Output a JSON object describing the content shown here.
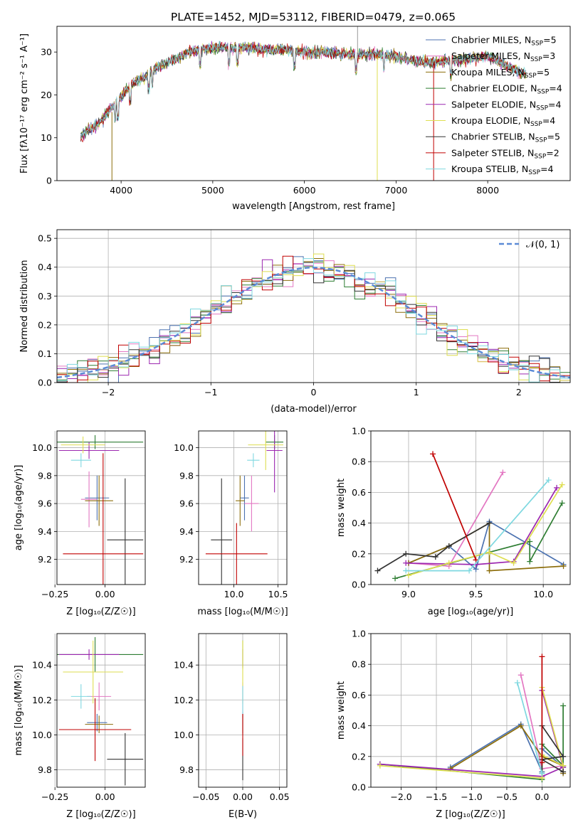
{
  "figure": {
    "title": "PLATE=1452, MJD=53112, FIBERID=0479, z=0.065"
  },
  "colors": [
    "#4c72b0",
    "#e377c2",
    "#8c6d0a",
    "#2e7d32",
    "#9c27b0",
    "#dede50",
    "#333333",
    "#c00000",
    "#7fd8e0"
  ],
  "chart_data": [
    {
      "id": "spectrum",
      "type": "line",
      "xlabel": "wavelength [Angstrom, rest frame]",
      "ylabel": "Flux [fλ10⁻¹⁷ erg cm⁻² s⁻¹ A⁻¹]",
      "xlim": [
        3300,
        8900
      ],
      "ylim": [
        0,
        36
      ],
      "xticks": [
        4000,
        5000,
        6000,
        7000,
        8000
      ],
      "yticks": [
        0,
        10,
        20,
        30
      ],
      "grid": false,
      "legend_placement": "top-right",
      "continuum": {
        "x": [
          3550,
          3650,
          3750,
          3850,
          3950,
          4050,
          4150,
          4250,
          4350,
          4450,
          4550,
          4650,
          4750,
          4850,
          5000,
          5200,
          5400,
          5600,
          5800,
          6000,
          6200,
          6400,
          6600,
          6800,
          7000,
          7200,
          7400,
          7600,
          7800,
          8000,
          8200,
          8400
        ],
        "y": [
          10,
          12,
          13,
          16,
          18,
          21,
          23,
          24,
          26,
          27,
          28,
          29,
          30,
          30.5,
          31,
          31,
          31,
          30.5,
          30.5,
          30,
          30,
          29.5,
          29.5,
          29.5,
          29,
          28,
          27.5,
          28,
          28.5,
          29,
          27,
          25
        ]
      },
      "series": [
        {
          "name": "Chabrier MILES, N_SSP=5"
        },
        {
          "name": "Salpeter MILES, N_SSP=3"
        },
        {
          "name": "Kroupa MILES, N_SSP=5"
        },
        {
          "name": "Chabrier ELODIE, N_SSP=4"
        },
        {
          "name": "Salpeter ELODIE, N_SSP=4"
        },
        {
          "name": "Kroupa ELODIE, N_SSP=4"
        },
        {
          "name": "Chabrier STELIB, N_SSP=5"
        },
        {
          "name": "Salpeter STELIB, N_SSP=2"
        },
        {
          "name": "Kroupa STELIB, N_SSP=4"
        }
      ],
      "legend": [
        {
          "pre": "Chabrier MILES, N",
          "sub": "SSP",
          "post": "=5"
        },
        {
          "pre": "Salpeter MILES, N",
          "sub": "SSP",
          "post": "=3"
        },
        {
          "pre": "Kroupa MILES, N",
          "sub": "SSP",
          "post": "=5"
        },
        {
          "pre": "Chabrier ELODIE, N",
          "sub": "SSP",
          "post": "=4"
        },
        {
          "pre": "Salpeter ELODIE, N",
          "sub": "SSP",
          "post": "=4"
        },
        {
          "pre": "Kroupa ELODIE, N",
          "sub": "SSP",
          "post": "=4"
        },
        {
          "pre": "Chabrier STELIB, N",
          "sub": "SSP",
          "post": "=5"
        },
        {
          "pre": "Salpeter STELIB, N",
          "sub": "SSP",
          "post": "=2"
        },
        {
          "pre": "Kroupa STELIB, N",
          "sub": "SSP",
          "post": "=4"
        }
      ]
    },
    {
      "id": "residuals",
      "type": "bar",
      "xlabel": "(data-model)/error",
      "ylabel": "Normed distribution",
      "xlim": [
        -2.5,
        2.5
      ],
      "ylim": [
        0,
        0.53
      ],
      "xticks": [
        -2,
        -1,
        0,
        1,
        2
      ],
      "yticks": [
        0.0,
        0.1,
        0.2,
        0.3,
        0.4,
        0.5
      ],
      "xticklabels": [
        "−2",
        "−1",
        "0",
        "1",
        "2"
      ],
      "grid": true,
      "bin_width": 0.1,
      "legend": "𝒩(0, 1)",
      "legend_placement": "top-right",
      "reference_curve": "N(0,1)"
    },
    {
      "id": "age_vs_Z",
      "type": "scatter",
      "xlabel": "Z [log₁₀(Z/Z☉)]",
      "ylabel": "age  [log₁₀(age/yr)]",
      "xlim": [
        -0.24,
        0.2
      ],
      "ylim": [
        9.02,
        10.12
      ],
      "xticks": [
        -0.25,
        0.0
      ],
      "yticks": [
        9.2,
        9.4,
        9.6,
        9.8,
        10.0
      ],
      "xticklabels": [
        "−0.25",
        "0.00"
      ],
      "grid": true,
      "points": [
        {
          "x": -0.04,
          "y": 9.64,
          "xerr": 0.06,
          "yerr": 0.16
        },
        {
          "x": -0.08,
          "y": 9.63,
          "xerr": 0.04,
          "yerr": 0.2
        },
        {
          "x": -0.03,
          "y": 9.62,
          "xerr": 0.07,
          "yerr": 0.18
        },
        {
          "x": -0.05,
          "y": 10.04,
          "xerr": 0.24,
          "yerr": 0.05
        },
        {
          "x": -0.08,
          "y": 9.98,
          "xerr": 0.15,
          "yerr": 0.06
        },
        {
          "x": -0.11,
          "y": 10.02,
          "xerr": 0.11,
          "yerr": 0.06
        },
        {
          "x": 0.1,
          "y": 9.34,
          "xerr": 0.09,
          "yerr": 0.44
        },
        {
          "x": -0.01,
          "y": 9.24,
          "xerr": 0.2,
          "yerr": 0.72
        },
        {
          "x": -0.12,
          "y": 9.91,
          "xerr": 0.05,
          "yerr": 0.05
        }
      ]
    },
    {
      "id": "age_vs_mass",
      "type": "scatter",
      "xlabel": "mass [log₁₀(M/M☉)]",
      "ylabel": "",
      "xlim": [
        9.6,
        10.6
      ],
      "ylim": [
        9.02,
        10.12
      ],
      "xticks": [
        10.0,
        10.5
      ],
      "yticks": [
        9.2,
        9.4,
        9.6,
        9.8,
        10.0
      ],
      "grid": true,
      "points": [
        {
          "x": 10.12,
          "y": 9.64,
          "xerr": 0.05,
          "yerr": 0.16
        },
        {
          "x": 10.2,
          "y": 9.6,
          "xerr": 0.08,
          "yerr": 0.2
        },
        {
          "x": 10.07,
          "y": 9.62,
          "xerr": 0.05,
          "yerr": 0.18
        },
        {
          "x": 10.46,
          "y": 10.04,
          "xerr": 0.1,
          "yerr": 0.05
        },
        {
          "x": 10.46,
          "y": 9.98,
          "xerr": 0.09,
          "yerr": 0.3
        },
        {
          "x": 10.36,
          "y": 10.02,
          "xerr": 0.2,
          "yerr": 0.18
        },
        {
          "x": 9.86,
          "y": 9.34,
          "xerr": 0.12,
          "yerr": 0.44
        },
        {
          "x": 10.03,
          "y": 9.24,
          "xerr": 0.35,
          "yerr": 0.22
        },
        {
          "x": 10.22,
          "y": 9.91,
          "xerr": 0.07,
          "yerr": 0.05
        }
      ]
    },
    {
      "id": "weight_vs_age",
      "type": "line",
      "xlabel": "age  [log₁₀(age/yr)]",
      "ylabel": "mass weight",
      "xlim": [
        8.72,
        10.2
      ],
      "ylim": [
        0,
        1.0
      ],
      "xticks": [
        9.0,
        9.5,
        10.0
      ],
      "yticks": [
        0.0,
        0.2,
        0.4,
        0.6,
        0.8,
        1.0
      ],
      "grid": true,
      "series": [
        {
          "x": [
            9.0,
            9.3,
            9.5,
            9.6,
            10.15
          ],
          "y": [
            0.14,
            0.25,
            0.1,
            0.41,
            0.13
          ]
        },
        {
          "x": [
            9.0,
            9.3,
            9.7
          ],
          "y": [
            0.14,
            0.12,
            0.73
          ]
        },
        {
          "x": [
            9.0,
            9.3,
            9.6,
            9.6,
            10.15
          ],
          "y": [
            0.14,
            0.25,
            0.4,
            0.09,
            0.12
          ]
        },
        {
          "x": [
            8.9,
            9.6,
            9.9,
            9.9,
            10.14
          ],
          "y": [
            0.04,
            0.21,
            0.28,
            0.15,
            0.53
          ]
        },
        {
          "x": [
            8.98,
            9.5,
            9.78,
            10.1
          ],
          "y": [
            0.14,
            0.13,
            0.15,
            0.63
          ]
        },
        {
          "x": [
            9.0,
            9.3,
            9.6,
            9.78,
            10.14
          ],
          "y": [
            0.06,
            0.14,
            0.21,
            0.14,
            0.65
          ]
        },
        {
          "x": [
            8.77,
            8.98,
            9.2,
            9.3,
            9.6
          ],
          "y": [
            0.09,
            0.2,
            0.18,
            0.25,
            0.4
          ]
        },
        {
          "x": [
            9.18,
            9.5
          ],
          "y": [
            0.85,
            0.16
          ]
        },
        {
          "x": [
            8.98,
            9.45,
            10.04
          ],
          "y": [
            0.09,
            0.09,
            0.68
          ]
        }
      ]
    },
    {
      "id": "mass_vs_Z",
      "type": "scatter",
      "xlabel": "Z [log₁₀(Z/Z☉)]",
      "ylabel": "mass [log₁₀(M/M☉)]",
      "xlim": [
        -0.24,
        0.2
      ],
      "ylim": [
        9.7,
        10.58
      ],
      "xticks": [
        -0.25,
        0.0
      ],
      "yticks": [
        9.8,
        10.0,
        10.2,
        10.4
      ],
      "xticklabels": [
        "−0.25",
        "0.00"
      ],
      "grid": true,
      "points": [
        {
          "x": -0.04,
          "y": 10.07,
          "xerr": 0.05,
          "yerr": 0.05
        },
        {
          "x": -0.03,
          "y": 10.22,
          "xerr": 0.06,
          "yerr": 0.08
        },
        {
          "x": -0.03,
          "y": 10.06,
          "xerr": 0.07,
          "yerr": 0.05
        },
        {
          "x": -0.05,
          "y": 10.46,
          "xerr": 0.24,
          "yerr": 0.1
        },
        {
          "x": -0.08,
          "y": 10.46,
          "xerr": 0.15,
          "yerr": 0.03
        },
        {
          "x": -0.06,
          "y": 10.36,
          "xerr": 0.15,
          "yerr": 0.18
        },
        {
          "x": 0.1,
          "y": 9.86,
          "xerr": 0.09,
          "yerr": 0.15
        },
        {
          "x": -0.05,
          "y": 10.03,
          "xerr": 0.18,
          "yerr": 0.18
        },
        {
          "x": -0.12,
          "y": 10.22,
          "xerr": 0.05,
          "yerr": 0.07
        }
      ]
    },
    {
      "id": "mass_vs_ebv",
      "type": "scatter",
      "xlabel": "E(B-V)",
      "ylabel": "",
      "xlim": [
        -0.06,
        0.06
      ],
      "ylim": [
        9.7,
        10.58
      ],
      "xticks": [
        -0.05,
        0.0,
        0.05
      ],
      "yticks": [
        9.8,
        10.0,
        10.2,
        10.4
      ],
      "xticklabels": [
        "−0.05",
        "0.00",
        "0.05"
      ],
      "grid": true,
      "points": [
        {
          "x": 0.0,
          "y": 10.07,
          "yerr": 0.06
        },
        {
          "x": 0.0,
          "y": 10.2,
          "yerr": 0.1
        },
        {
          "x": 0.0,
          "y": 10.06,
          "yerr": 0.06
        },
        {
          "x": 0.0,
          "y": 10.46,
          "yerr": 0.08
        },
        {
          "x": 0.0,
          "y": 10.44,
          "yerr": 0.05
        },
        {
          "x": 0.0,
          "y": 10.36,
          "yerr": 0.18
        },
        {
          "x": 0.0,
          "y": 9.86,
          "yerr": 0.12
        },
        {
          "x": 0.0,
          "y": 10.0,
          "yerr": 0.12
        },
        {
          "x": 0.0,
          "y": 10.2,
          "yerr": 0.08
        }
      ]
    },
    {
      "id": "weight_vs_Z",
      "type": "line",
      "xlabel": "Z [log₁₀(Z/Z☉)]",
      "ylabel": "mass weight",
      "xlim": [
        -2.43,
        0.4
      ],
      "ylim": [
        0,
        1.0
      ],
      "xticks": [
        -2.0,
        -1.5,
        -1.0,
        -0.5,
        0.0
      ],
      "yticks": [
        0.0,
        0.2,
        0.4,
        0.6,
        0.8,
        1.0
      ],
      "xticklabels": [
        "−2.0",
        "−1.5",
        "−1.0",
        "−0.5",
        "0.0"
      ],
      "grid": true,
      "series": [
        {
          "x": [
            -1.3,
            -0.3,
            0.0,
            0.0,
            0.3
          ],
          "y": [
            0.13,
            0.41,
            0.1,
            0.25,
            0.13
          ]
        },
        {
          "x": [
            -0.3,
            0.0,
            0.3
          ],
          "y": [
            0.73,
            0.12,
            0.14
          ]
        },
        {
          "x": [
            -1.3,
            -0.3,
            0.0,
            0.3,
            0.3
          ],
          "y": [
            0.12,
            0.4,
            0.2,
            0.14,
            0.09
          ]
        },
        {
          "x": [
            -2.3,
            0.0,
            0.0,
            0.3,
            0.3
          ],
          "y": [
            0.15,
            0.05,
            0.28,
            0.14,
            0.53
          ]
        },
        {
          "x": [
            -2.3,
            0.0,
            0.3,
            0.0
          ],
          "y": [
            0.15,
            0.07,
            0.13,
            0.63
          ]
        },
        {
          "x": [
            -2.3,
            0.0,
            0.0,
            0.3,
            0.0
          ],
          "y": [
            0.14,
            0.06,
            0.21,
            0.14,
            0.65
          ]
        },
        {
          "x": [
            0.0,
            0.0,
            0.3,
            0.0,
            0.3
          ],
          "y": [
            0.09,
            0.4,
            0.2,
            0.18,
            0.1
          ]
        },
        {
          "x": [
            0.0,
            0.0
          ],
          "y": [
            0.85,
            0.16
          ]
        },
        {
          "x": [
            -0.35,
            0.0,
            0.0
          ],
          "y": [
            0.68,
            0.09,
            0.09
          ]
        }
      ]
    }
  ]
}
